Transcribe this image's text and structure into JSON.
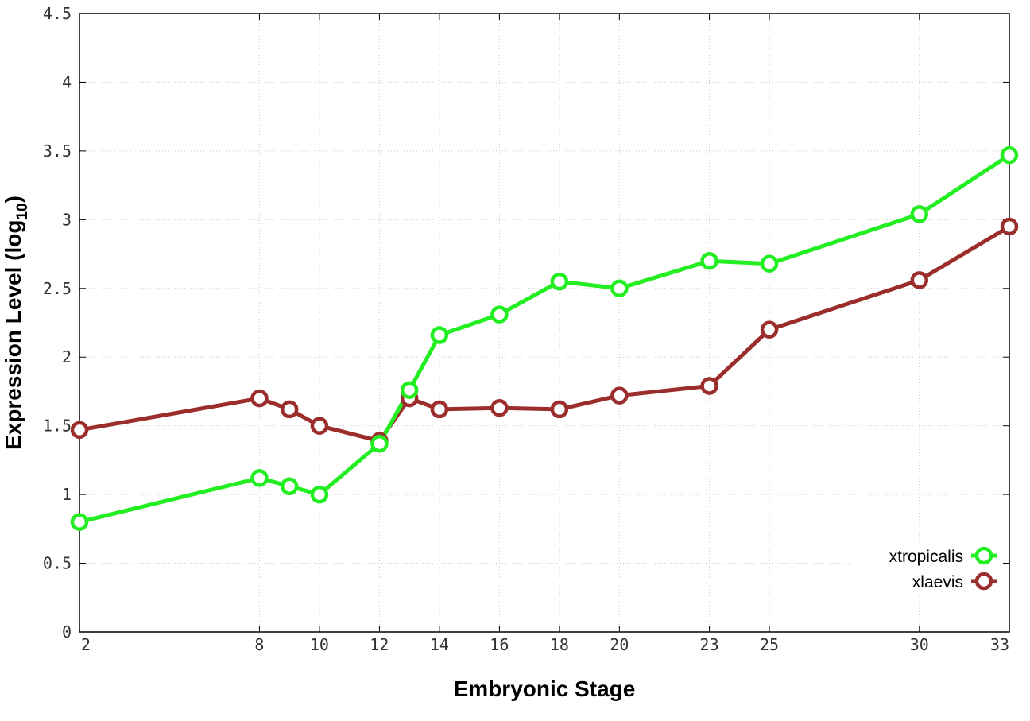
{
  "chart_data": {
    "type": "line",
    "xlabel": "Embryonic Stage",
    "ylabel_main": "Expression Level (log",
    "ylabel_sub": "10",
    "ylabel_close": ")",
    "x": [
      2,
      8,
      9,
      10,
      12,
      13,
      14,
      16,
      18,
      20,
      23,
      25,
      30,
      33
    ],
    "x_ticks": [
      2,
      8,
      10,
      12,
      14,
      16,
      18,
      20,
      23,
      25,
      30,
      33
    ],
    "y_ticks": [
      "0",
      "0.5",
      "1",
      "1.5",
      "2",
      "2.5",
      "3",
      "3.5",
      "4",
      "4.5"
    ],
    "xlim": [
      2,
      33
    ],
    "ylim": [
      0,
      4.5
    ],
    "grid": true,
    "legend_position": "bottom-right",
    "series": [
      {
        "name": "xtropicalis",
        "color": "#22ee22",
        "values": [
          0.8,
          1.12,
          1.06,
          1.0,
          1.37,
          1.76,
          2.16,
          2.31,
          2.55,
          2.5,
          2.7,
          2.68,
          3.04,
          3.47
        ]
      },
      {
        "name": "xlaevis",
        "color": "#9b2d2d",
        "values": [
          1.47,
          1.7,
          1.62,
          1.5,
          1.39,
          1.7,
          1.62,
          1.63,
          1.62,
          1.72,
          1.79,
          2.2,
          2.56,
          2.95
        ]
      }
    ]
  }
}
